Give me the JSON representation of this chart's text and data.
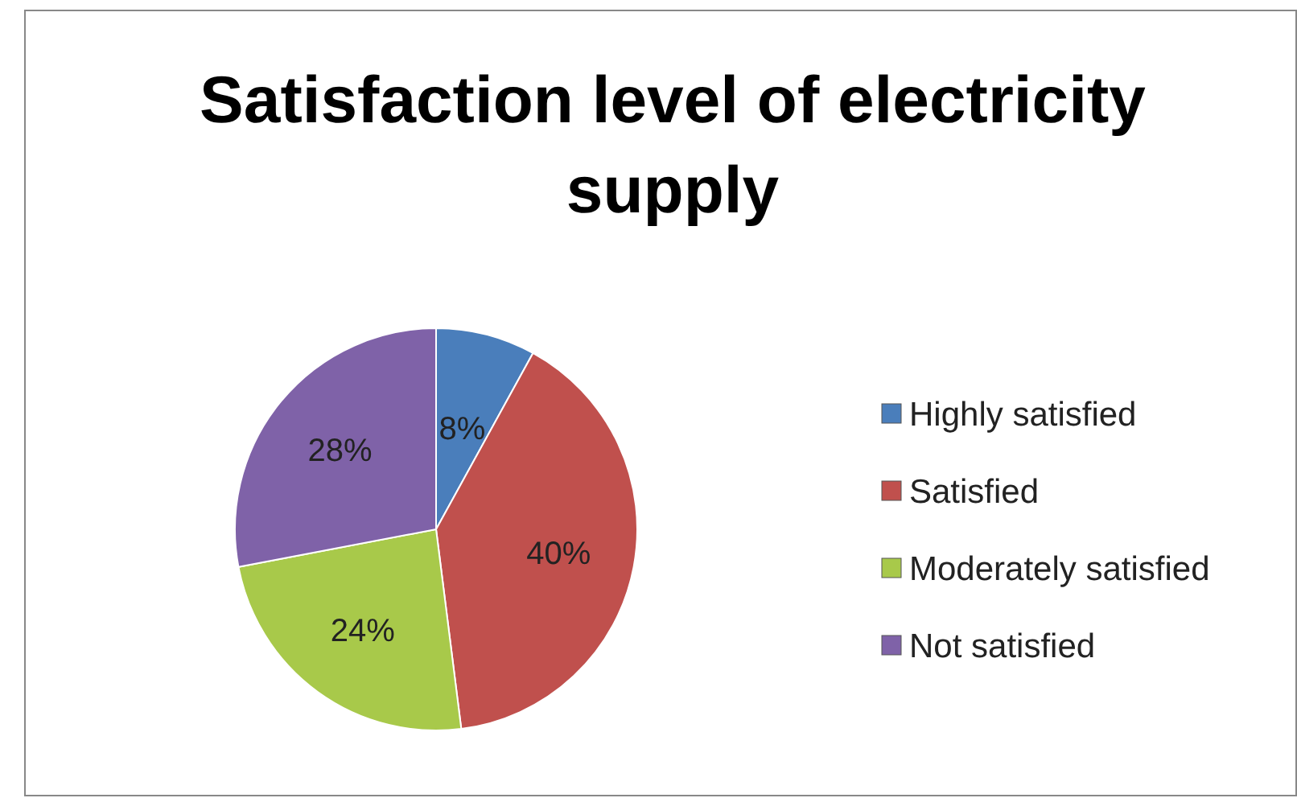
{
  "chart_data": {
    "type": "pie",
    "title": "Satisfaction level of electricity supply",
    "categories": [
      "Highly satisfied",
      "Satisfied",
      "Moderately satisfied",
      "Not satisfied"
    ],
    "values": [
      8,
      40,
      24,
      28
    ],
    "colors": [
      "#4a7ebb",
      "#c0504d",
      "#a8c94a",
      "#7f62a8"
    ],
    "value_labels": [
      "8%",
      "40%",
      "24%",
      "28%"
    ],
    "legend": "right"
  }
}
